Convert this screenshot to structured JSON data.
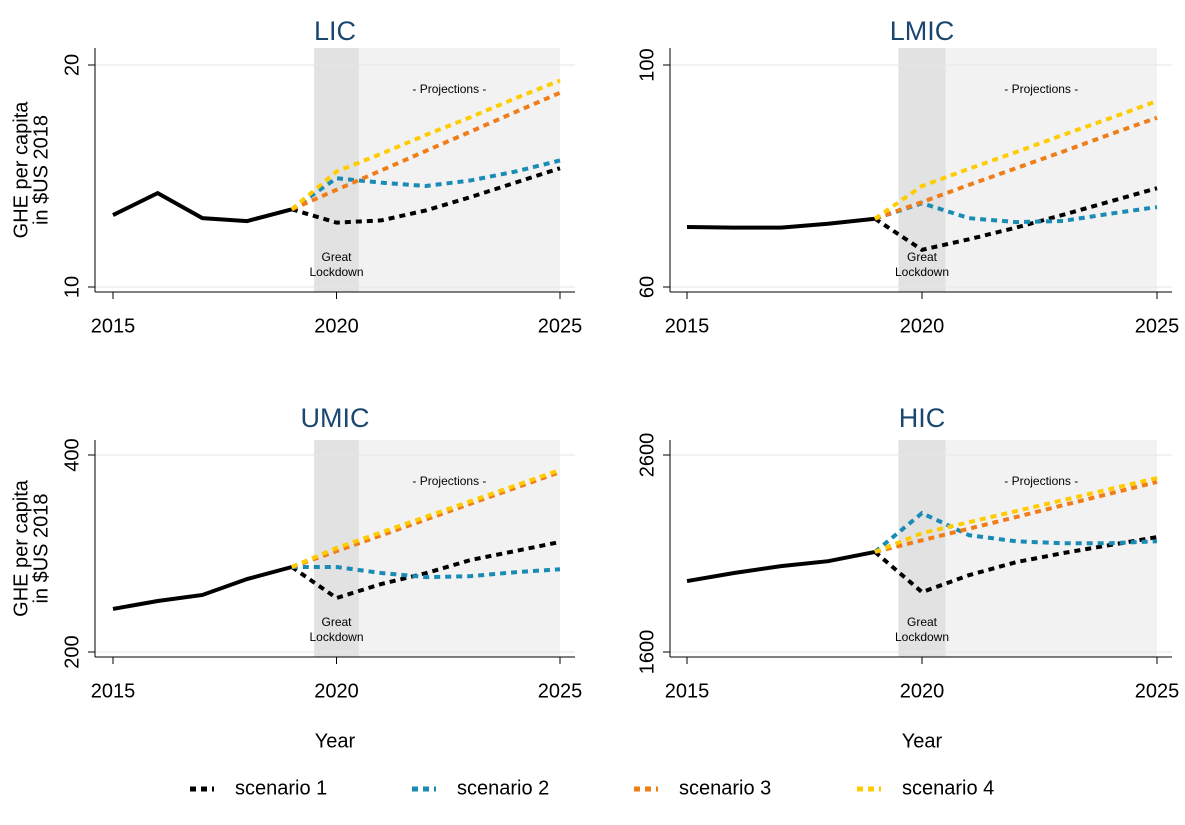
{
  "chart_data": [
    {
      "type": "line",
      "title": "LIC",
      "ylabel": [
        "GHE per capita",
        "in $US 2018"
      ],
      "x": [
        2015,
        2016,
        2017,
        2018,
        2019,
        2020,
        2021,
        2022,
        2023,
        2024,
        2025
      ],
      "xlim": [
        2015,
        2025
      ],
      "xticks": [
        2015,
        2020,
        2025
      ],
      "ylim": [
        10,
        20
      ],
      "yticks": [
        10,
        20
      ],
      "grid": true,
      "lockdown_span": [
        2019.5,
        2020.5
      ],
      "projection_span": [
        2020.5,
        2025
      ],
      "projections_label": "- Projections -",
      "lockdown_label": [
        "Great",
        "Lockdown"
      ],
      "history": {
        "color": "#000000",
        "values": [
          13.24,
          14.23,
          13.1,
          12.97,
          13.5,
          null,
          null,
          null,
          null,
          null,
          null
        ]
      },
      "series": [
        {
          "name": "scenario 1",
          "color": "#000000",
          "values": [
            null,
            null,
            null,
            null,
            13.5,
            12.9,
            13.0,
            13.45,
            14.05,
            14.7,
            15.35
          ]
        },
        {
          "name": "scenario 2",
          "color": "#1a8bb5",
          "values": [
            null,
            null,
            null,
            null,
            13.5,
            14.9,
            14.7,
            14.55,
            14.8,
            15.2,
            15.7
          ]
        },
        {
          "name": "scenario 3",
          "color": "#ef7d1a",
          "values": [
            null,
            null,
            null,
            null,
            13.5,
            14.38,
            15.25,
            16.13,
            17.0,
            17.88,
            18.75
          ]
        },
        {
          "name": "scenario 4",
          "color": "#ffcc00",
          "values": [
            null,
            null,
            null,
            null,
            13.5,
            15.2,
            16.0,
            16.85,
            17.65,
            18.5,
            19.3
          ]
        }
      ]
    },
    {
      "type": "line",
      "title": "LMIC",
      "x": [
        2015,
        2016,
        2017,
        2018,
        2019,
        2020,
        2021,
        2022,
        2023,
        2024,
        2025
      ],
      "xlim": [
        2015,
        2025
      ],
      "xticks": [
        2015,
        2020,
        2025
      ],
      "ylim": [
        60,
        100
      ],
      "yticks": [
        60,
        100
      ],
      "grid": true,
      "lockdown_span": [
        2019.5,
        2020.5
      ],
      "projection_span": [
        2020.5,
        2025
      ],
      "projections_label": "- Projections -",
      "lockdown_label": [
        "Great",
        "Lockdown"
      ],
      "history": {
        "color": "#000000",
        "values": [
          70.8,
          70.7,
          70.7,
          71.4,
          72.3,
          null,
          null,
          null,
          null,
          null,
          null
        ]
      },
      "series": [
        {
          "name": "scenario 1",
          "color": "#000000",
          "values": [
            null,
            null,
            null,
            null,
            72.3,
            66.7,
            68.6,
            70.7,
            73.0,
            75.4,
            77.8
          ]
        },
        {
          "name": "scenario 2",
          "color": "#1a8bb5",
          "values": [
            null,
            null,
            null,
            null,
            72.3,
            75.1,
            72.4,
            71.7,
            71.9,
            73.2,
            74.4
          ]
        },
        {
          "name": "scenario 3",
          "color": "#ef7d1a",
          "values": [
            null,
            null,
            null,
            null,
            72.3,
            75.3,
            78.4,
            81.4,
            84.4,
            87.5,
            90.5
          ]
        },
        {
          "name": "scenario 4",
          "color": "#ffcc00",
          "values": [
            null,
            null,
            null,
            null,
            72.3,
            78.2,
            81.3,
            84.3,
            87.4,
            90.4,
            93.5
          ]
        }
      ]
    },
    {
      "type": "line",
      "title": "UMIC",
      "ylabel": [
        "GHE per capita",
        "in $US 2018"
      ],
      "xlabel": "Year",
      "x": [
        2015,
        2016,
        2017,
        2018,
        2019,
        2020,
        2021,
        2022,
        2023,
        2024,
        2025
      ],
      "xlim": [
        2015,
        2025
      ],
      "xticks": [
        2015,
        2020,
        2025
      ],
      "ylim": [
        200,
        400
      ],
      "yticks": [
        200,
        400
      ],
      "grid": true,
      "lockdown_span": [
        2019.5,
        2020.5
      ],
      "projection_span": [
        2020.5,
        2025
      ],
      "projections_label": "- Projections -",
      "lockdown_label": [
        "Great",
        "Lockdown"
      ],
      "history": {
        "color": "#000000",
        "values": [
          243.7,
          251.8,
          257.9,
          274.1,
          286.3,
          null,
          null,
          null,
          null,
          null,
          null
        ]
      },
      "series": [
        {
          "name": "scenario 1",
          "color": "#000000",
          "values": [
            null,
            null,
            null,
            null,
            286.3,
            254.8,
            269,
            280,
            293.4,
            302.5,
            311.7
          ]
        },
        {
          "name": "scenario 2",
          "color": "#1a8bb5",
          "values": [
            null,
            null,
            null,
            null,
            286.3,
            286.3,
            280.2,
            276,
            277,
            281,
            284
          ]
        },
        {
          "name": "scenario 3",
          "color": "#ef7d1a",
          "values": [
            null,
            null,
            null,
            null,
            286.3,
            302.4,
            318.4,
            334.5,
            350.6,
            366.6,
            382.7
          ]
        },
        {
          "name": "scenario 4",
          "color": "#ffcc00",
          "values": [
            null,
            null,
            null,
            null,
            286.3,
            305.6,
            321.4,
            337.3,
            353.1,
            369,
            384.8
          ]
        }
      ]
    },
    {
      "type": "line",
      "title": "HIC",
      "xlabel": "Year",
      "x": [
        2015,
        2016,
        2017,
        2018,
        2019,
        2020,
        2021,
        2022,
        2023,
        2024,
        2025
      ],
      "xlim": [
        2015,
        2025
      ],
      "xticks": [
        2015,
        2020,
        2025
      ],
      "ylim": [
        1600,
        2600
      ],
      "yticks": [
        1600,
        2600
      ],
      "grid": true,
      "lockdown_span": [
        2019.5,
        2020.5
      ],
      "projection_span": [
        2020.5,
        2025
      ],
      "projections_label": "- Projections -",
      "lockdown_label": [
        "Great",
        "Lockdown"
      ],
      "history": {
        "color": "#000000",
        "values": [
          1960,
          2001,
          2036,
          2061,
          2108,
          null,
          null,
          null,
          null,
          null,
          null
        ]
      },
      "series": [
        {
          "name": "scenario 1",
          "color": "#000000",
          "values": [
            null,
            null,
            null,
            null,
            2108,
            1904,
            1990,
            2056,
            2102,
            2143,
            2183
          ]
        },
        {
          "name": "scenario 2",
          "color": "#1a8bb5",
          "values": [
            null,
            null,
            null,
            null,
            2108,
            2305,
            2193,
            2162,
            2152,
            2152,
            2162
          ]
        },
        {
          "name": "scenario 3",
          "color": "#ef7d1a",
          "values": [
            null,
            null,
            null,
            null,
            2108,
            2167,
            2226,
            2285,
            2345,
            2404,
            2463
          ]
        },
        {
          "name": "scenario 4",
          "color": "#ffcc00",
          "values": [
            null,
            null,
            null,
            null,
            2108,
            2203,
            2259,
            2315,
            2371,
            2427,
            2483
          ]
        }
      ]
    }
  ]
}
